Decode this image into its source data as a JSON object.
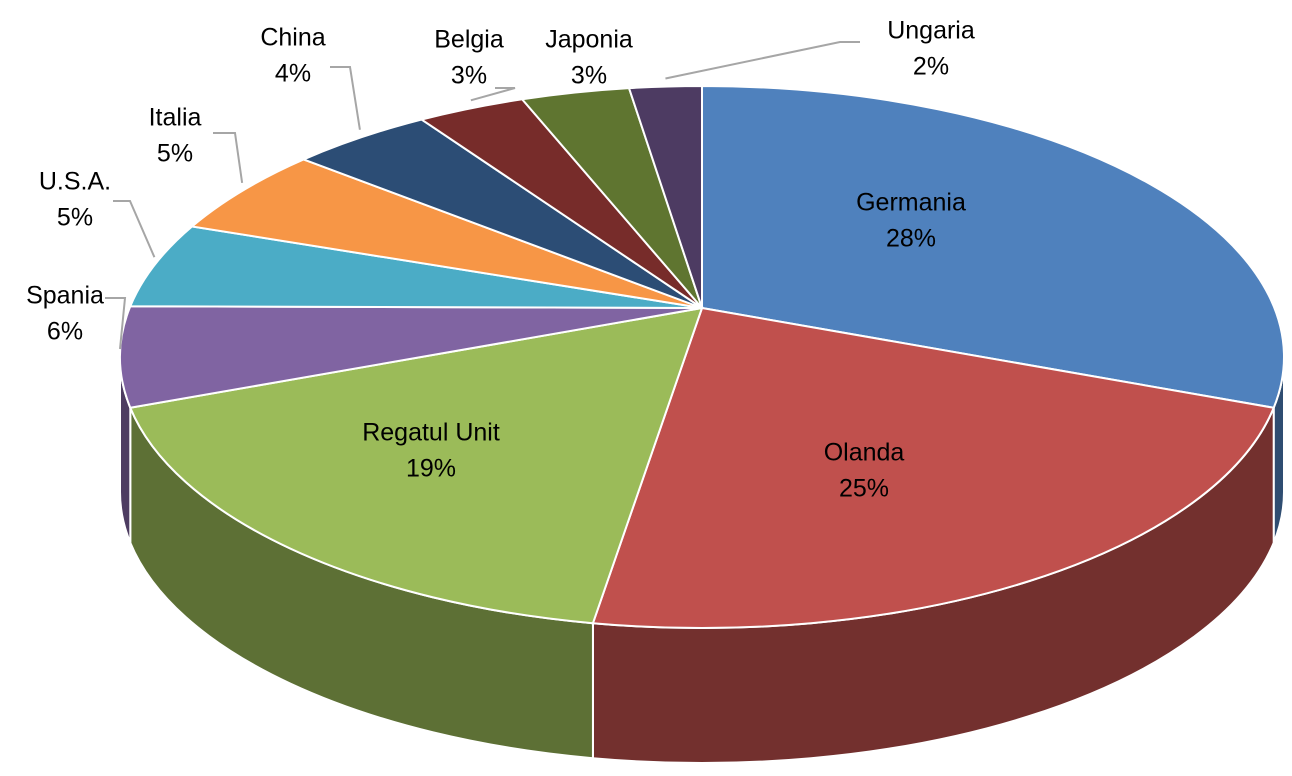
{
  "chart_data": {
    "type": "pie",
    "three_d": true,
    "categories": [
      "Germania",
      "Olanda",
      "Regatul Unit",
      "Spania",
      "U.S.A.",
      "Italia",
      "China",
      "Belgia",
      "Japonia",
      "Ungaria"
    ],
    "values": [
      28,
      25,
      19,
      6,
      5,
      5,
      4,
      3,
      3,
      2
    ],
    "value_labels": [
      "28%",
      "25%",
      "19%",
      "6%",
      "5%",
      "5%",
      "4%",
      "3%",
      "3%",
      "2%"
    ],
    "colors": [
      "#4f81bd",
      "#c0504d",
      "#9bbb59",
      "#8064a2",
      "#4bacc6",
      "#f79646",
      "#2c4d75",
      "#772c2a",
      "#5f7530",
      "#4d3b62"
    ]
  }
}
